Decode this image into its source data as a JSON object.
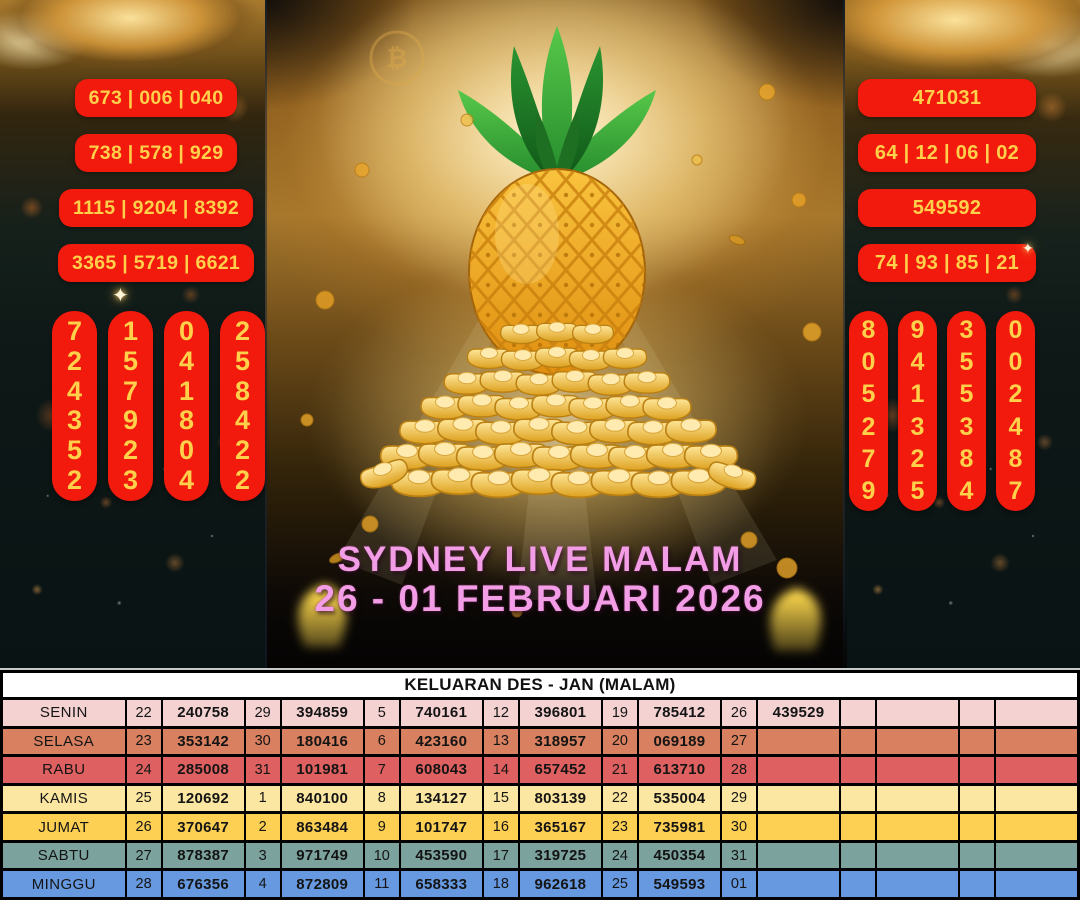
{
  "colors": {
    "badge_red": "#F2190D",
    "badge_text": "#FFD04A",
    "title_pink": "#F29DE5"
  },
  "banner": {
    "title_line1": "SYDNEY LIVE MALAM",
    "title_line2": "26 - 01 FEBRUARI 2026",
    "sparkle_char": "✦",
    "coin_symbol": "₿",
    "left_badges": [
      "673 | 006 | 040",
      "738 | 578 | 929",
      "1115 | 9204 | 8392",
      "3365 | 5719 | 6621"
    ],
    "right_badges": [
      "471031",
      "64 | 12 | 06 | 02",
      "549592",
      "74 | 93 | 85 | 21"
    ],
    "left_digit_columns": [
      "724352",
      "157923",
      "041804",
      "258422"
    ],
    "right_digit_columns": [
      "805279",
      "941325",
      "355384",
      "002487"
    ]
  },
  "table": {
    "header": "KELUARAN DES - JAN (MALAM)",
    "rows": [
      {
        "day": "SENIN",
        "color": "#F3D2D1",
        "cells": [
          "22",
          "240758",
          "29",
          "394859",
          "5",
          "740161",
          "12",
          "396801",
          "19",
          "785412",
          "26",
          "439529",
          "",
          "",
          "",
          ""
        ]
      },
      {
        "day": "SELASA",
        "color": "#D8805F",
        "cells": [
          "23",
          "353142",
          "30",
          "180416",
          "6",
          "423160",
          "13",
          "318957",
          "20",
          "069189",
          "27",
          "",
          "",
          "",
          "",
          ""
        ]
      },
      {
        "day": "RABU",
        "color": "#DF6060",
        "cells": [
          "24",
          "285008",
          "31",
          "101981",
          "7",
          "608043",
          "14",
          "657452",
          "21",
          "613710",
          "28",
          "",
          "",
          "",
          "",
          ""
        ]
      },
      {
        "day": "KAMIS",
        "color": "#FBE7A1",
        "cells": [
          "25",
          "120692",
          "1",
          "840100",
          "8",
          "134127",
          "15",
          "803139",
          "22",
          "535004",
          "29",
          "",
          "",
          "",
          "",
          ""
        ]
      },
      {
        "day": "JUMAT",
        "color": "#FDD053",
        "cells": [
          "26",
          "370647",
          "2",
          "863484",
          "9",
          "101747",
          "16",
          "365167",
          "23",
          "735981",
          "30",
          "",
          "",
          "",
          "",
          ""
        ]
      },
      {
        "day": "SABTU",
        "color": "#7BA29D",
        "cells": [
          "27",
          "878387",
          "3",
          "971749",
          "10",
          "453590",
          "17",
          "319725",
          "24",
          "450354",
          "31",
          "",
          "",
          "",
          "",
          ""
        ]
      },
      {
        "day": "MINGGU",
        "color": "#6699E0",
        "cells": [
          "28",
          "676356",
          "4",
          "872809",
          "11",
          "658333",
          "18",
          "962618",
          "25",
          "549593",
          "01",
          "",
          "",
          "",
          "",
          ""
        ]
      }
    ]
  }
}
